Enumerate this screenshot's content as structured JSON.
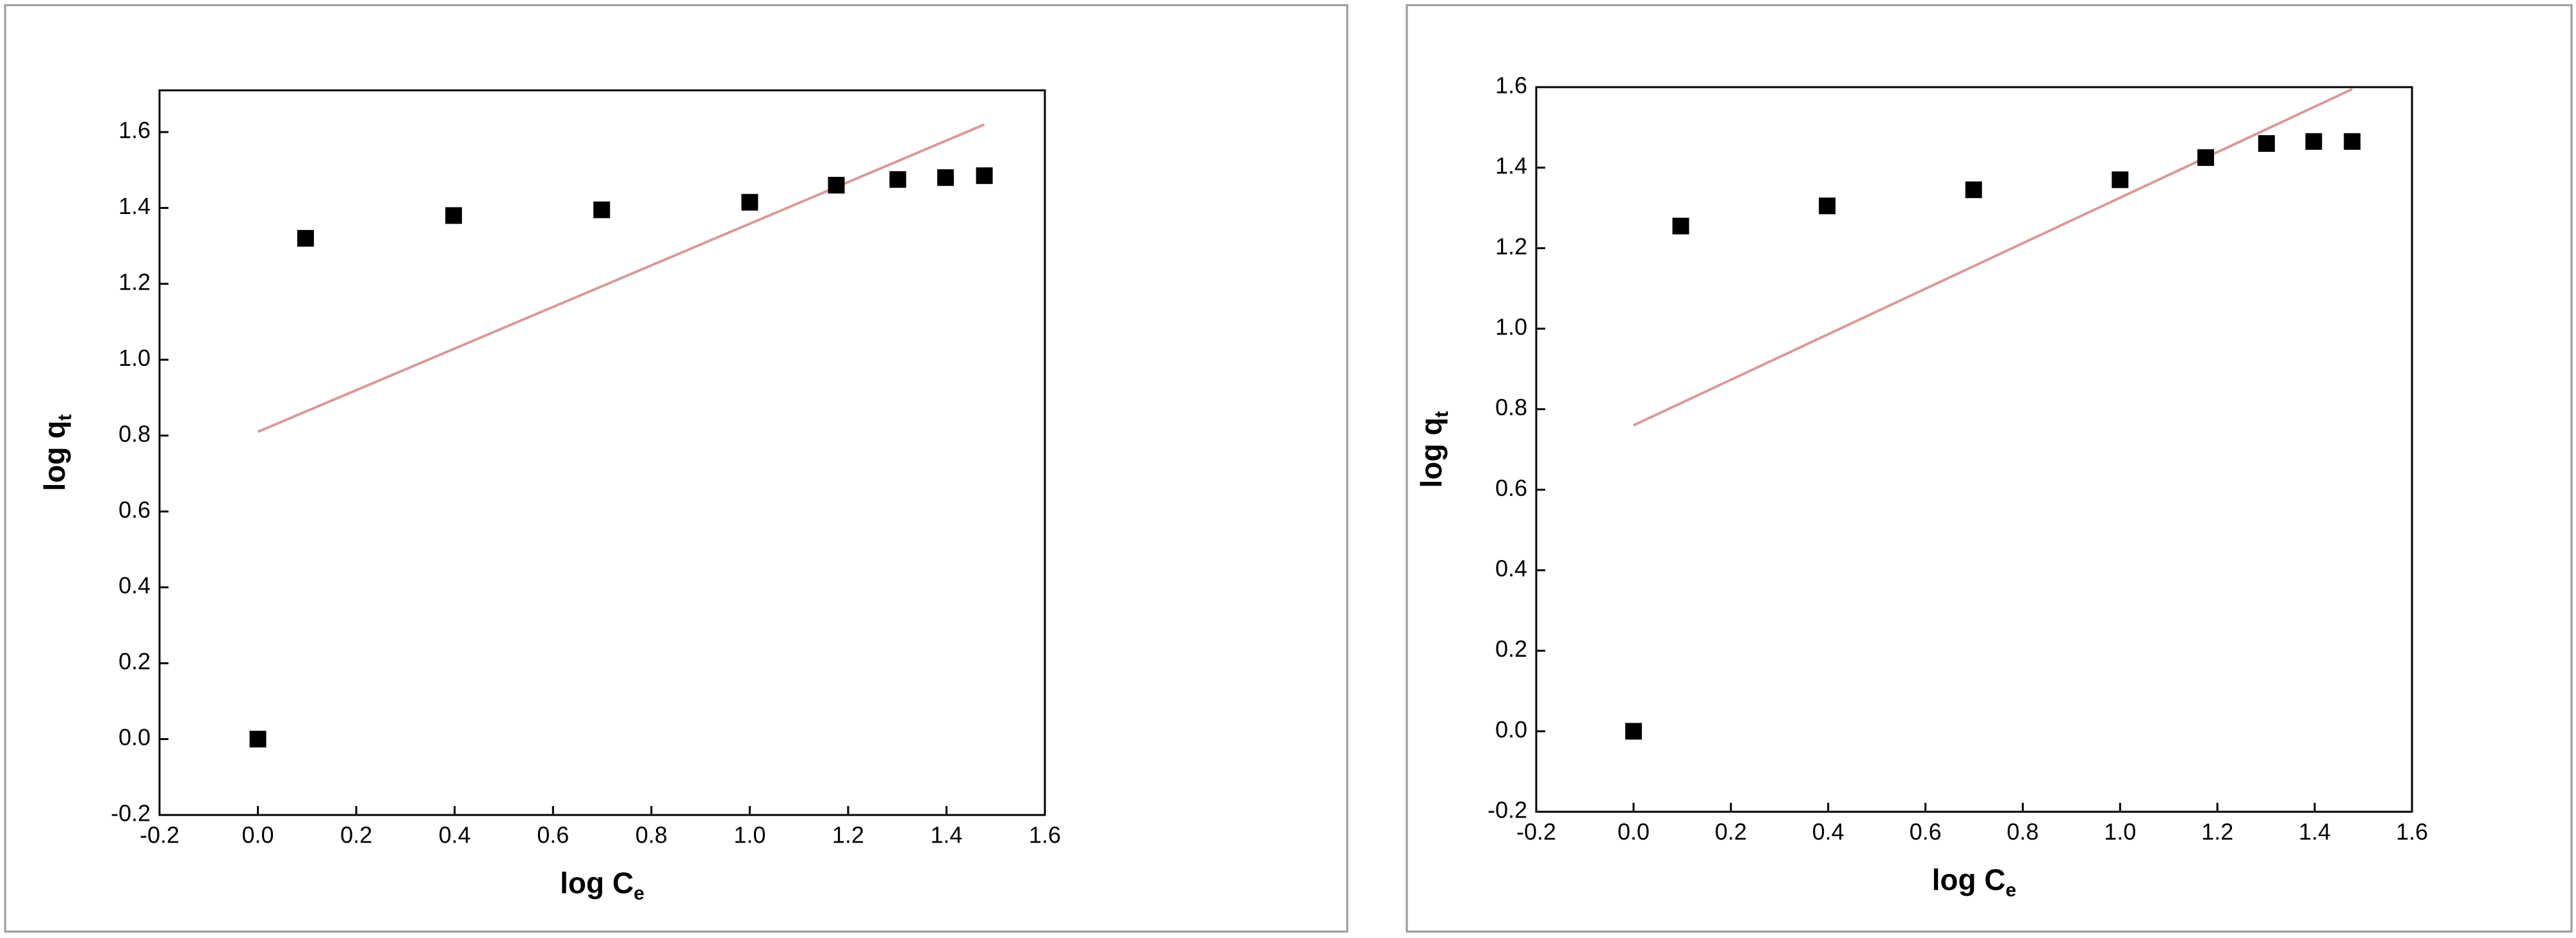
{
  "chart_data": [
    {
      "type": "scatter",
      "xlabel": {
        "text": "log C",
        "subscript": "e"
      },
      "ylabel": {
        "text": "log q",
        "subscript": "t"
      },
      "x": [
        0,
        0.097,
        0.398,
        0.699,
        1.0,
        1.176,
        1.301,
        1.398,
        1.477
      ],
      "values": [
        0,
        1.32,
        1.38,
        1.395,
        1.415,
        1.46,
        1.475,
        1.48,
        1.485
      ],
      "color": "#000000",
      "fit": {
        "color": "#d99a9a",
        "x": [
          0,
          1.477
        ],
        "values": [
          0.81,
          1.62
        ]
      },
      "xlim": [
        -0.2,
        1.6
      ],
      "ylim": [
        -0.2,
        1.71
      ],
      "xticks": [
        -0.2,
        {
          "value": 0,
          "label": "0.0"
        },
        0.2,
        0.4,
        0.6,
        0.8,
        {
          "value": 1,
          "label": "1.0"
        },
        1.2,
        1.4,
        1.6
      ],
      "yticks": [
        -0.2,
        {
          "value": 0,
          "label": "0.0"
        },
        0.2,
        0.4,
        0.6,
        0.8,
        {
          "value": 1,
          "label": "1.0"
        },
        1.2,
        1.4,
        1.6
      ]
    },
    {
      "type": "scatter",
      "xlabel": {
        "text": "log C",
        "subscript": "e"
      },
      "ylabel": {
        "text": "log q",
        "subscript": "t"
      },
      "x": [
        0,
        0.097,
        0.398,
        0.699,
        1.0,
        1.176,
        1.301,
        1.398,
        1.477
      ],
      "values": [
        0,
        1.255,
        1.305,
        1.345,
        1.37,
        1.425,
        1.46,
        1.465,
        1.465
      ],
      "color": "#000000",
      "fit": {
        "color": "#d99a9a",
        "x": [
          0,
          1.477
        ],
        "values": [
          0.76,
          1.595
        ]
      },
      "xlim": [
        -0.2,
        1.6
      ],
      "ylim": [
        -0.2,
        1.6
      ],
      "xticks": [
        -0.2,
        {
          "value": 0,
          "label": "0.0"
        },
        0.2,
        0.4,
        0.6,
        0.8,
        {
          "value": 1,
          "label": "1.0"
        },
        1.2,
        1.4,
        1.6
      ],
      "yticks": [
        -0.2,
        {
          "value": 0,
          "label": "0.0"
        },
        0.2,
        0.4,
        0.6,
        0.8,
        {
          "value": 1,
          "label": "1.0"
        },
        1.2,
        1.4,
        1.6
      ]
    }
  ]
}
